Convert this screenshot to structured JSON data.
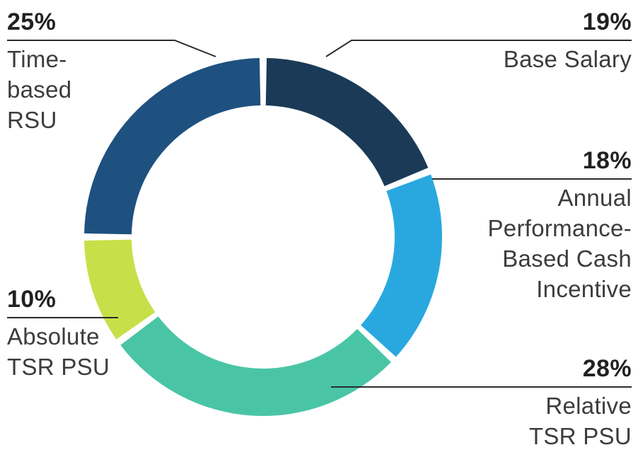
{
  "chart_data": {
    "type": "pie",
    "subtype": "donut",
    "title": "",
    "direction": "clockwise",
    "start_angle_deg": 0,
    "legend_position": "callout-labels",
    "segments": [
      {
        "label": "Base Salary",
        "pct": "19%",
        "value": 19,
        "color": "#1b3a57"
      },
      {
        "label": "Annual Performance-Based Cash Incentive",
        "pct": "18%",
        "value": 18,
        "color": "#29a8e0"
      },
      {
        "label": "Relative TSR PSU",
        "pct": "28%",
        "value": 28,
        "color": "#49c5a6"
      },
      {
        "label": "Absolute TSR PSU",
        "pct": "10%",
        "value": 10,
        "color": "#c7e049"
      },
      {
        "label": "Time-based RSU",
        "pct": "25%",
        "value": 25,
        "color": "#1e5180"
      }
    ]
  },
  "callouts": {
    "time_based_rsu": {
      "pct": "25%",
      "lines": [
        "Time-",
        "based",
        "RSU"
      ]
    },
    "base_salary": {
      "pct": "19%",
      "lines": [
        "Base Salary"
      ]
    },
    "annual_cash": {
      "pct": "18%",
      "lines": [
        "Annual",
        "Performance-",
        "Based Cash",
        "Incentive"
      ]
    },
    "relative_tsr": {
      "pct": "28%",
      "lines": [
        "Relative",
        "TSR PSU"
      ]
    },
    "absolute_tsr": {
      "pct": "10%",
      "lines": [
        "Absolute",
        "TSR PSU"
      ]
    }
  }
}
